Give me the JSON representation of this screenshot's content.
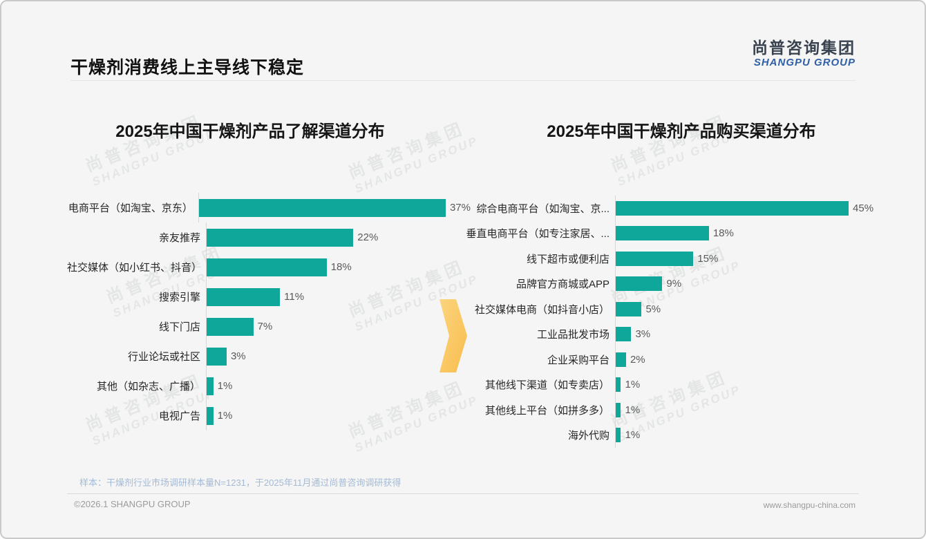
{
  "page": {
    "title": "干燥剂消费线上主导线下稳定",
    "logo": {
      "cn": "尚普咨询集团",
      "en": "SHANGPU GROUP"
    },
    "watermark": {
      "cn": "尚普咨询集团",
      "en": "SHANGPU GROUP"
    },
    "footnote": "样本：干燥剂行业市场调研样本量N=1231，于2025年11月通过尚普咨询调研获得",
    "footer_left": "©2026.1 SHANGPU GROUP",
    "footer_right": "www.shangpu-china.com"
  },
  "colors": {
    "bar_teal": "#0fa79a",
    "arrow_yellow": "#fac55f",
    "logo_blue": "#2f5fa7",
    "note_blue": "#a5bad6"
  },
  "chart_data": [
    {
      "type": "bar",
      "orientation": "horizontal",
      "title": "2025年中国干燥剂产品了解渠道分布",
      "categories": [
        "电商平台（如淘宝、京东）",
        "亲友推荐",
        "社交媒体（如小红书、抖音）",
        "搜索引擎",
        "线下门店",
        "行业论坛或社区",
        "其他（如杂志、广播）",
        "电视广告"
      ],
      "values": [
        37,
        22,
        18,
        11,
        7,
        3,
        1,
        1
      ],
      "labels": [
        "37%",
        "22%",
        "18%",
        "11%",
        "7%",
        "3%",
        "1%",
        "1%"
      ],
      "unit": "%",
      "xlim": [
        0,
        40
      ],
      "grid": false,
      "legend": "none"
    },
    {
      "type": "bar",
      "orientation": "horizontal",
      "title": "2025年中国干燥剂产品购买渠道分布",
      "categories": [
        "综合电商平台（如淘宝、京...",
        "垂直电商平台（如专注家居、...",
        "线下超市或便利店",
        "品牌官方商城或APP",
        "社交媒体电商（如抖音小店）",
        "工业品批发市场",
        "企业采购平台",
        "其他线下渠道（如专卖店）",
        "其他线上平台（如拼多多）",
        "海外代购"
      ],
      "values": [
        45,
        18,
        15,
        9,
        5,
        3,
        2,
        1,
        1,
        1
      ],
      "labels": [
        "45%",
        "18%",
        "15%",
        "9%",
        "5%",
        "3%",
        "2%",
        "1%",
        "1%",
        "1%"
      ],
      "unit": "%",
      "xlim": [
        0,
        50
      ],
      "grid": false,
      "legend": "none"
    }
  ]
}
